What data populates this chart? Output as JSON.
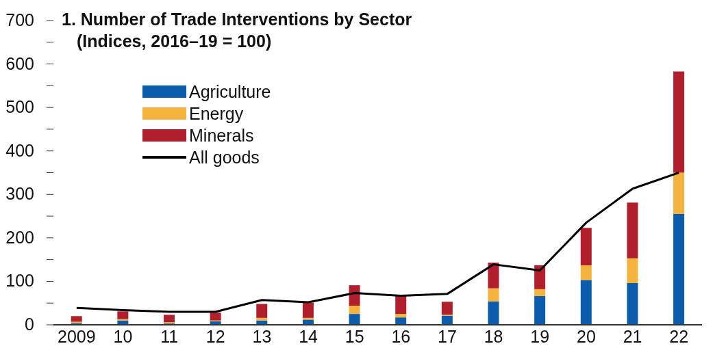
{
  "chart_data": {
    "type": "bar",
    "title": "1. Number of Trade Interventions by Sector",
    "subtitle": "(Indices, 2016–19 = 100)",
    "categories": [
      "2009",
      "10",
      "11",
      "12",
      "13",
      "14",
      "15",
      "16",
      "17",
      "18",
      "19",
      "20",
      "21",
      "22"
    ],
    "stacked": true,
    "series": [
      {
        "name": "Agriculture",
        "color": "#0b5cad",
        "values": [
          4,
          10,
          3,
          8,
          10,
          12,
          25,
          17,
          21,
          54,
          66,
          103,
          96,
          255
        ]
      },
      {
        "name": "Energy",
        "color": "#f3b33d",
        "values": [
          3,
          3,
          3,
          2,
          6,
          4,
          19,
          8,
          2,
          30,
          16,
          34,
          57,
          95
        ]
      },
      {
        "name": "Minerals",
        "color": "#b01f2b",
        "values": [
          13,
          18,
          17,
          18,
          32,
          35,
          47,
          41,
          30,
          59,
          55,
          86,
          128,
          233
        ]
      },
      {
        "name": "All goods",
        "type": "line",
        "color": "#000000",
        "values": [
          39,
          34,
          30,
          30,
          57,
          52,
          73,
          67,
          71,
          139,
          125,
          235,
          313,
          350
        ]
      }
    ],
    "ylim": [
      0,
      700
    ],
    "yticks": [
      0,
      {
        "value": 50,
        "label": null
      },
      100,
      {
        "value": 150,
        "label": null
      },
      200,
      {
        "value": 250,
        "label": null
      },
      300,
      {
        "value": 350,
        "label": null
      },
      400,
      {
        "value": 450,
        "label": null
      },
      500,
      {
        "value": 550,
        "label": null
      },
      600,
      {
        "value": 650,
        "label": null
      },
      700
    ],
    "grid": false,
    "legend": "top left",
    "marker": "none",
    "line_style": "solid"
  }
}
